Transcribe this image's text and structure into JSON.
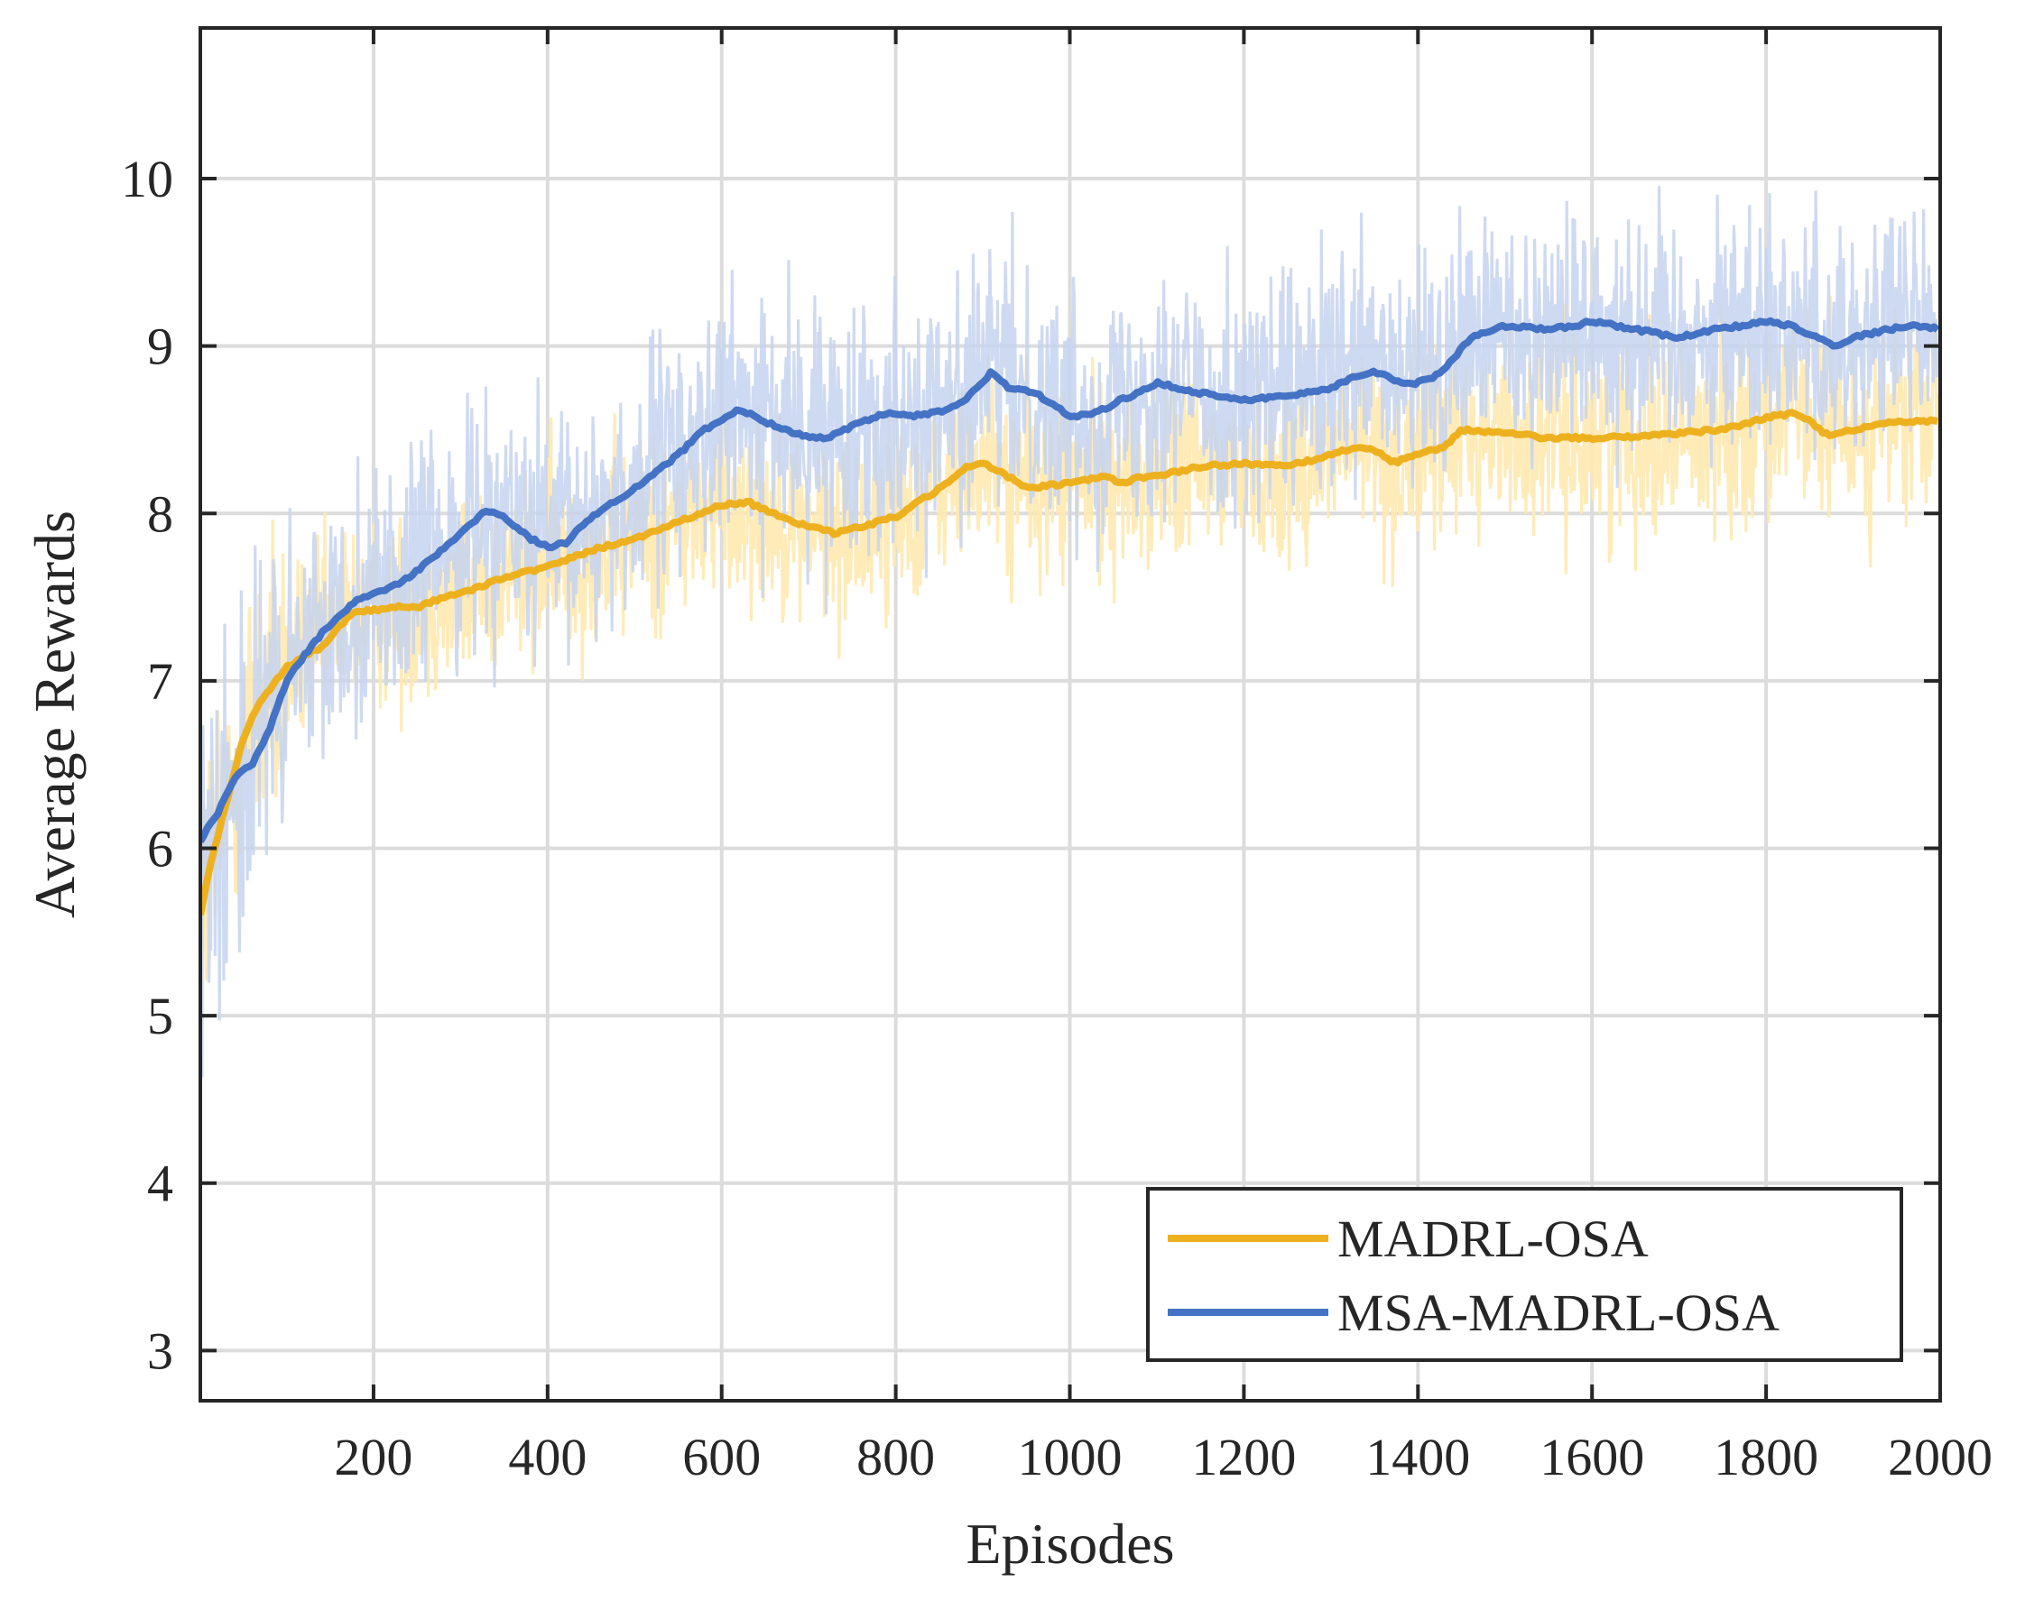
{
  "chart_data": {
    "type": "line",
    "title": "",
    "xlabel": "Episodes",
    "ylabel": "Average Rewards",
    "xlim": [
      1,
      2000
    ],
    "ylim": [
      2.7,
      10.9
    ],
    "xticks": [
      200,
      400,
      600,
      800,
      1000,
      1200,
      1400,
      1600,
      1800,
      2000
    ],
    "yticks": [
      3,
      4,
      5,
      6,
      7,
      8,
      9,
      10
    ],
    "xtick_labels": [
      "200",
      "400",
      "600",
      "800",
      "1000",
      "1200",
      "1400",
      "1600",
      "1800",
      "2000"
    ],
    "ytick_labels": [
      "3",
      "4",
      "5",
      "6",
      "7",
      "8",
      "9",
      "10"
    ],
    "grid": true,
    "legend_position": "bottom-right",
    "series": [
      {
        "name": "MADRL-OSA",
        "color": "#EDB120",
        "raw_color": "#FFE9B0",
        "noise": 0.75,
        "x": [
          1,
          10,
          20,
          30,
          40,
          50,
          60,
          70,
          80,
          100,
          120,
          140,
          160,
          180,
          200,
          220,
          250,
          280,
          300,
          350,
          400,
          450,
          500,
          550,
          600,
          630,
          650,
          700,
          730,
          760,
          800,
          830,
          860,
          880,
          900,
          920,
          950,
          1000,
          1040,
          1060,
          1080,
          1100,
          1150,
          1200,
          1250,
          1300,
          1330,
          1350,
          1370,
          1400,
          1430,
          1450,
          1500,
          1550,
          1600,
          1650,
          1700,
          1750,
          1800,
          1830,
          1850,
          1870,
          1900,
          1950,
          2000
        ],
        "values": [
          5.6,
          5.85,
          6.05,
          6.25,
          6.45,
          6.65,
          6.78,
          6.88,
          6.95,
          7.08,
          7.15,
          7.2,
          7.32,
          7.42,
          7.42,
          7.44,
          7.44,
          7.5,
          7.52,
          7.62,
          7.68,
          7.78,
          7.85,
          7.95,
          8.05,
          8.07,
          8.02,
          7.92,
          7.88,
          7.92,
          7.98,
          8.08,
          8.18,
          8.28,
          8.3,
          8.25,
          8.15,
          8.18,
          8.22,
          8.18,
          8.22,
          8.22,
          8.28,
          8.3,
          8.28,
          8.35,
          8.4,
          8.38,
          8.3,
          8.35,
          8.4,
          8.5,
          8.48,
          8.45,
          8.45,
          8.46,
          8.48,
          8.5,
          8.57,
          8.6,
          8.55,
          8.47,
          8.5,
          8.55,
          8.55
        ]
      },
      {
        "name": "MSA-MADRL-OSA",
        "color": "#4472C4",
        "raw_color": "#C5D4EE",
        "noise": 0.95,
        "x": [
          1,
          20,
          40,
          60,
          80,
          100,
          120,
          140,
          160,
          180,
          200,
          230,
          260,
          300,
          330,
          350,
          380,
          400,
          420,
          450,
          500,
          550,
          580,
          620,
          650,
          700,
          720,
          750,
          790,
          820,
          860,
          880,
          900,
          910,
          930,
          960,
          1000,
          1030,
          1060,
          1080,
          1100,
          1150,
          1200,
          1250,
          1300,
          1330,
          1350,
          1380,
          1400,
          1420,
          1440,
          1460,
          1500,
          1550,
          1580,
          1600,
          1650,
          1700,
          1740,
          1770,
          1800,
          1830,
          1860,
          1880,
          1900,
          1940,
          1970,
          2000
        ],
        "values": [
          6.05,
          6.2,
          6.42,
          6.5,
          6.7,
          7.0,
          7.15,
          7.28,
          7.38,
          7.48,
          7.52,
          7.58,
          7.7,
          7.88,
          8.02,
          7.98,
          7.85,
          7.8,
          7.82,
          7.98,
          8.15,
          8.35,
          8.5,
          8.62,
          8.55,
          8.45,
          8.45,
          8.52,
          8.6,
          8.58,
          8.62,
          8.68,
          8.78,
          8.85,
          8.75,
          8.72,
          8.58,
          8.6,
          8.68,
          8.72,
          8.78,
          8.72,
          8.68,
          8.7,
          8.75,
          8.82,
          8.85,
          8.78,
          8.78,
          8.82,
          8.92,
          9.05,
          9.12,
          9.1,
          9.12,
          9.15,
          9.1,
          9.05,
          9.1,
          9.12,
          9.15,
          9.12,
          9.05,
          9.0,
          9.05,
          9.1,
          9.12,
          9.1
        ]
      }
    ]
  }
}
